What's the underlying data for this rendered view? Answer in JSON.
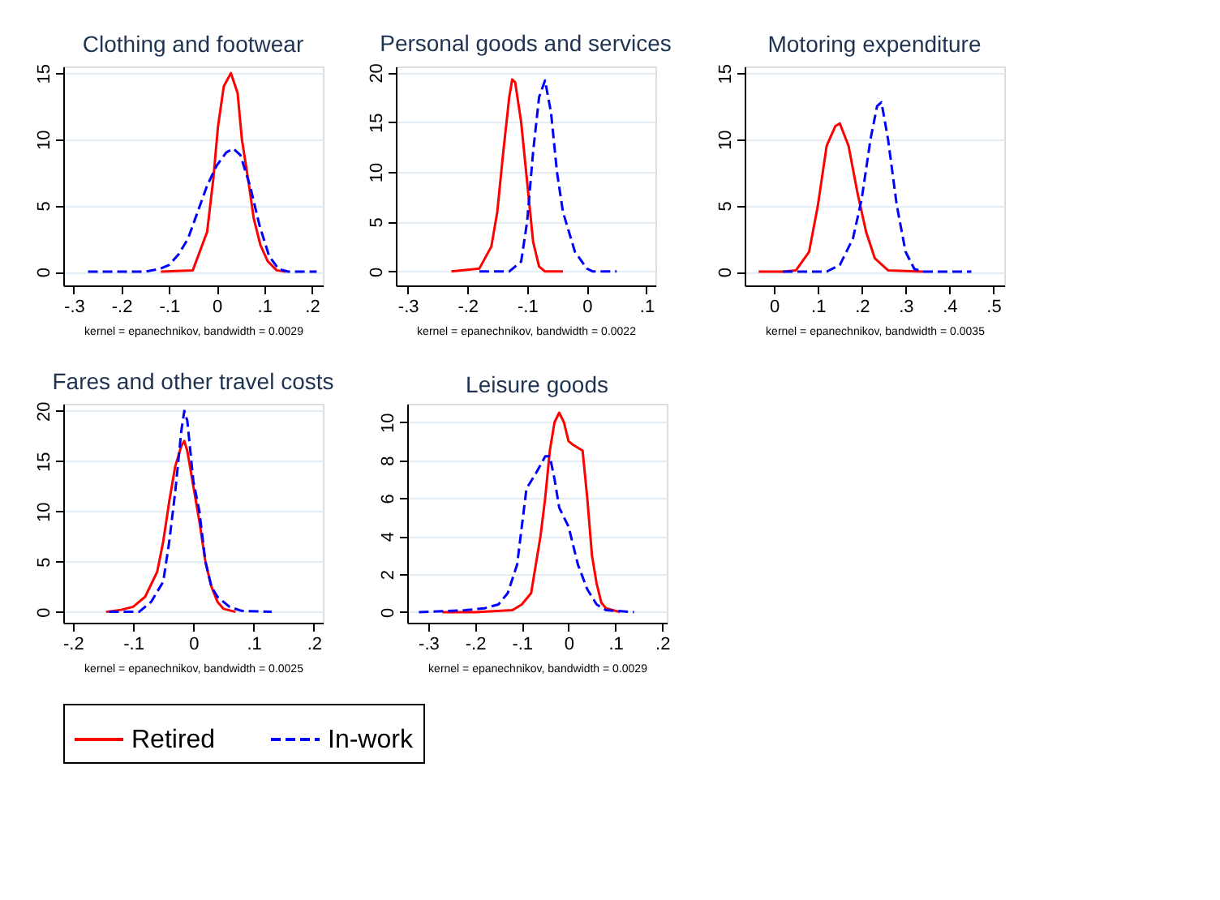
{
  "chart_data": [
    {
      "type": "line",
      "title": "Clothing and footwear",
      "annotations": [
        "kernel = epanechnikov, bandwidth = 0.0029"
      ],
      "legend": "bottom",
      "grid": "y",
      "xlim": [
        -0.322,
        0.223
      ],
      "ylim": [
        -1.04,
        15.5
      ],
      "xticks": [
        {
          "value": -0.3,
          "label": "-.3"
        },
        {
          "value": -0.2,
          "label": "-.2"
        },
        {
          "value": -0.1,
          "label": "-.1"
        },
        0,
        {
          "value": 0.1,
          "label": ".1"
        },
        {
          "value": 0.2,
          "label": ".2"
        }
      ],
      "yticks": [
        0,
        5,
        10,
        15
      ],
      "series": [
        {
          "name": "Retired",
          "color": "#ff0000",
          "line_style": "solid",
          "x": [
            -0.117,
            -0.05,
            -0.02,
            -0.007,
            0.003,
            0.015,
            0.03,
            0.044,
            0.053,
            0.066,
            0.078,
            0.092,
            0.107,
            0.126,
            0.145
          ],
          "values": [
            0,
            0.1,
            3,
            7,
            11,
            14,
            15,
            13.5,
            10,
            7,
            4,
            2,
            0.8,
            0.1,
            0
          ]
        },
        {
          "name": "In-work",
          "color": "#0000ff",
          "line_style": "dashed",
          "x": [
            -0.27,
            -0.15,
            -0.12,
            -0.1,
            -0.08,
            -0.06,
            -0.04,
            -0.02,
            0,
            0.02,
            0.035,
            0.05,
            0.07,
            0.09,
            0.11,
            0.13,
            0.15,
            0.21
          ],
          "values": [
            0,
            0,
            0.2,
            0.5,
            1.3,
            2.5,
            4.5,
            6.5,
            8,
            9,
            9.3,
            8.8,
            6.5,
            3.5,
            1.2,
            0.2,
            0,
            0
          ]
        }
      ]
    },
    {
      "type": "line",
      "title": "Personal goods and services",
      "annotations": [
        "kernel = epanechnikov, bandwidth = 0.0022"
      ],
      "legend": "bottom",
      "grid": "y",
      "xlim": [
        -0.32,
        0.115
      ],
      "ylim": [
        -1.4,
        20.6
      ],
      "xticks": [
        {
          "value": -0.3,
          "label": "-.3"
        },
        {
          "value": -0.2,
          "label": "-.2"
        },
        {
          "value": -0.1,
          "label": "-.1"
        },
        0,
        {
          "value": 0.1,
          "label": ".1"
        }
      ],
      "yticks": [
        0,
        5,
        10,
        15,
        20
      ],
      "series": [
        {
          "name": "Retired",
          "color": "#ff0000",
          "line_style": "solid",
          "x": [
            -0.227,
            -0.18,
            -0.16,
            -0.15,
            -0.14,
            -0.13,
            -0.125,
            -0.12,
            -0.11,
            -0.1,
            -0.09,
            -0.08,
            -0.07,
            -0.04
          ],
          "values": [
            0,
            0.3,
            2.5,
            6,
            12,
            17.5,
            19.3,
            19,
            15,
            9,
            3,
            0.5,
            0,
            0
          ]
        },
        {
          "name": "In-work",
          "color": "#0000ff",
          "line_style": "dashed",
          "x": [
            -0.18,
            -0.13,
            -0.11,
            -0.1,
            -0.09,
            -0.08,
            -0.07,
            -0.06,
            -0.05,
            -0.04,
            -0.02,
            0,
            0.01,
            0.05
          ],
          "values": [
            0,
            0,
            1,
            5,
            12,
            17.5,
            19.2,
            16,
            10,
            6,
            2,
            0.3,
            0,
            0
          ]
        }
      ]
    },
    {
      "type": "line",
      "title": "Motoring expenditure",
      "annotations": [
        "kernel = epanechnikov, bandwidth = 0.0035"
      ],
      "legend": "bottom",
      "grid": "y",
      "xlim": [
        -0.067,
        0.525
      ],
      "ylim": [
        -1.04,
        15.5
      ],
      "xticks": [
        0,
        {
          "value": 0.1,
          "label": ".1"
        },
        {
          "value": 0.2,
          "label": ".2"
        },
        {
          "value": 0.3,
          "label": ".3"
        },
        {
          "value": 0.4,
          "label": ".4"
        },
        {
          "value": 0.5,
          "label": ".5"
        }
      ],
      "yticks": [
        0,
        5,
        10,
        15
      ],
      "series": [
        {
          "name": "Retired",
          "color": "#ff0000",
          "line_style": "solid",
          "x": [
            -0.035,
            0.02,
            0.05,
            0.08,
            0.1,
            0.12,
            0.14,
            0.15,
            0.17,
            0.19,
            0.21,
            0.23,
            0.26,
            0.34
          ],
          "values": [
            0,
            0,
            0.1,
            1.5,
            5,
            9.5,
            11,
            11.2,
            9.5,
            6,
            3,
            1,
            0.1,
            0
          ]
        },
        {
          "name": "In-work",
          "color": "#0000ff",
          "line_style": "dashed",
          "x": [
            0.02,
            0.12,
            0.15,
            0.18,
            0.2,
            0.22,
            0.235,
            0.245,
            0.26,
            0.28,
            0.3,
            0.32,
            0.34,
            0.45
          ],
          "values": [
            0,
            0,
            0.5,
            2.5,
            5.5,
            10,
            12.5,
            12.8,
            10,
            5,
            1.5,
            0.2,
            0,
            0
          ]
        }
      ]
    },
    {
      "type": "line",
      "title": "Fares and other travel costs",
      "annotations": [
        "kernel = epanechnikov, bandwidth = 0.0025"
      ],
      "legend": "bottom",
      "grid": "y",
      "xlim": [
        -0.216,
        0.215
      ],
      "ylim": [
        -1.08,
        20.7
      ],
      "xticks": [
        {
          "value": -0.2,
          "label": "-.2"
        },
        {
          "value": -0.1,
          "label": "-.1"
        },
        0,
        {
          "value": 0.1,
          "label": ".1"
        },
        {
          "value": 0.2,
          "label": ".2"
        }
      ],
      "yticks": [
        0,
        5,
        10,
        15,
        20
      ],
      "series": [
        {
          "name": "Retired",
          "color": "#ff0000",
          "line_style": "solid",
          "x": [
            -0.145,
            -0.12,
            -0.1,
            -0.08,
            -0.06,
            -0.05,
            -0.04,
            -0.03,
            -0.02,
            -0.015,
            -0.01,
            0,
            0.01,
            0.02,
            0.03,
            0.04,
            0.05,
            0.07
          ],
          "values": [
            0,
            0.2,
            0.5,
            1.5,
            4,
            7,
            11,
            14.5,
            16.5,
            17,
            16,
            12.5,
            9,
            5,
            2.5,
            1,
            0.3,
            0
          ]
        },
        {
          "name": "In-work",
          "color": "#0000ff",
          "line_style": "dashed",
          "x": [
            -0.14,
            -0.09,
            -0.07,
            -0.05,
            -0.04,
            -0.03,
            -0.02,
            -0.015,
            -0.01,
            0,
            0.01,
            0.02,
            0.03,
            0.04,
            0.06,
            0.08,
            0.13
          ],
          "values": [
            0,
            0,
            1,
            3,
            7,
            12,
            18,
            20,
            19,
            13,
            10,
            5,
            2.5,
            1.5,
            0.5,
            0.1,
            0
          ]
        }
      ]
    },
    {
      "type": "line",
      "title": "Leisure goods",
      "annotations": [
        "kernel = epanechnikov, bandwidth = 0.0029"
      ],
      "legend": "bottom",
      "grid": "y",
      "xlim": [
        -0.345,
        0.21
      ],
      "ylim": [
        -0.56,
        10.97
      ],
      "xticks": [
        {
          "value": -0.3,
          "label": "-.3"
        },
        {
          "value": -0.2,
          "label": "-.2"
        },
        {
          "value": -0.1,
          "label": "-.1"
        },
        0,
        {
          "value": 0.1,
          "label": ".1"
        },
        {
          "value": 0.2,
          "label": ".2"
        }
      ],
      "yticks": [
        0,
        2,
        4,
        6,
        8,
        10
      ],
      "series": [
        {
          "name": "Retired",
          "color": "#ff0000",
          "line_style": "solid",
          "x": [
            -0.27,
            -0.2,
            -0.12,
            -0.1,
            -0.08,
            -0.06,
            -0.05,
            -0.04,
            -0.03,
            -0.02,
            -0.01,
            0,
            0.01,
            0.03,
            0.04,
            0.05,
            0.06,
            0.07,
            0.08,
            0.11
          ],
          "values": [
            0,
            0,
            0.1,
            0.4,
            1,
            4,
            6,
            8.5,
            10,
            10.5,
            10,
            9,
            8.8,
            8.5,
            6,
            3,
            1.5,
            0.5,
            0.2,
            0
          ]
        },
        {
          "name": "In-work",
          "color": "#0000ff",
          "line_style": "dashed",
          "x": [
            -0.32,
            -0.22,
            -0.18,
            -0.15,
            -0.13,
            -0.11,
            -0.1,
            -0.09,
            -0.07,
            -0.05,
            -0.04,
            -0.03,
            -0.02,
            0,
            0.02,
            0.04,
            0.06,
            0.08,
            0.14
          ],
          "values": [
            0,
            0.1,
            0.2,
            0.4,
            1,
            2.5,
            4.5,
            6.5,
            7.3,
            8.2,
            8.2,
            7,
            5.5,
            4.5,
            2.5,
            1.2,
            0.4,
            0.1,
            0
          ]
        }
      ]
    }
  ]
}
